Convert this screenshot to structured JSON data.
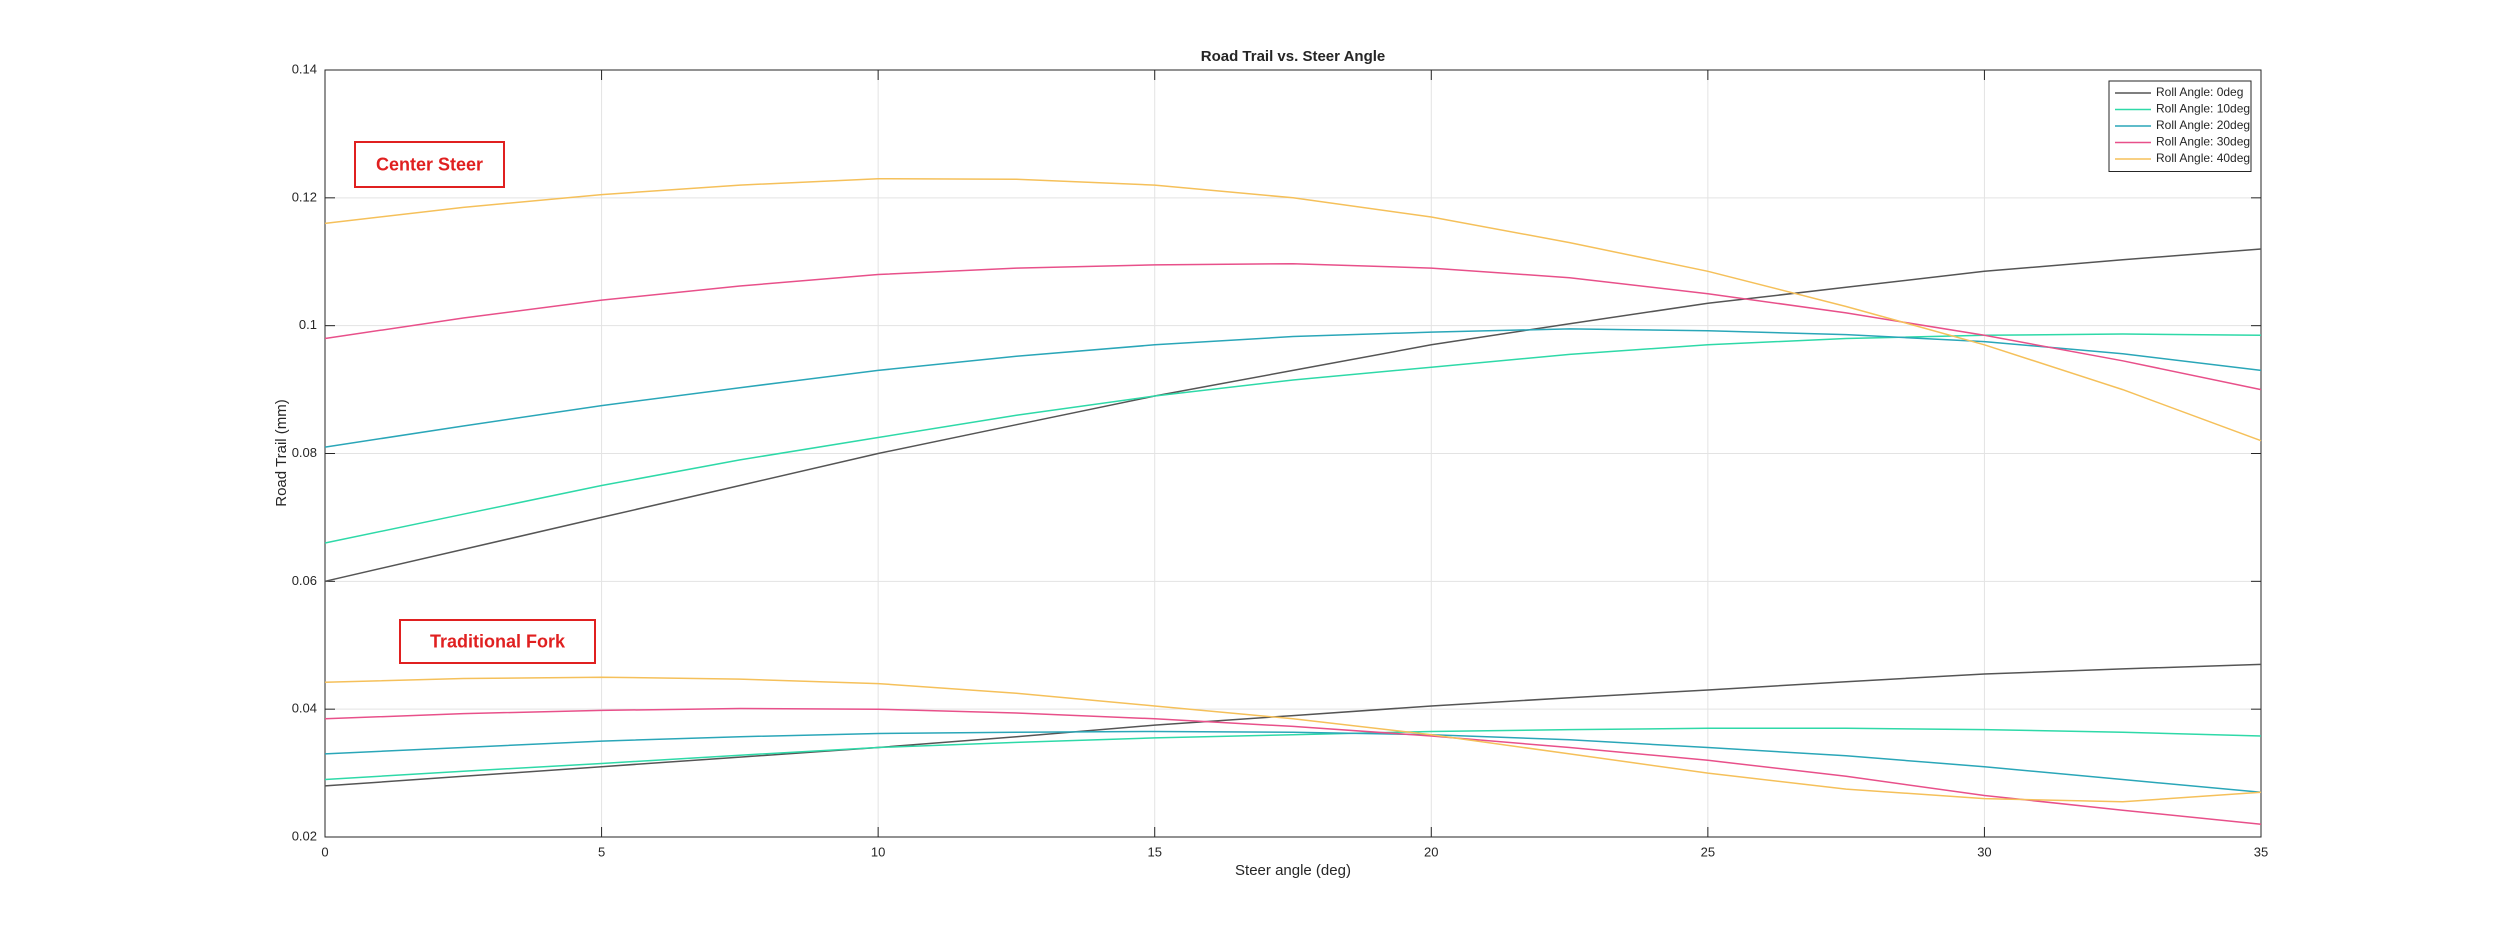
{
  "chart_data": {
    "type": "line",
    "title": "Road Trail vs. Steer Angle",
    "x_label": "Steer angle (deg)",
    "y_label": "Road Trail (mm)",
    "annotations": [
      "Center Steer",
      "Traditional Fork"
    ],
    "x": [
      0,
      2.5,
      5,
      7.5,
      10,
      12.5,
      15,
      17.5,
      20,
      22.5,
      25,
      27.5,
      30,
      32.5,
      35
    ],
    "xlim": [
      0,
      35
    ],
    "xticks": [
      0,
      5,
      10,
      15,
      20,
      25,
      30,
      35
    ],
    "ylim": [
      0.02,
      0.14
    ],
    "yticks": [
      0.02,
      0.04,
      0.06,
      0.08,
      0.1,
      0.12,
      0.14
    ],
    "grid": true,
    "legend": "top-right",
    "series": [
      {
        "name": "Roll Angle: 0deg",
        "color": "#555555",
        "values": [
          0.06,
          0.065,
          0.07,
          0.075,
          0.08,
          0.0845,
          0.089,
          0.093,
          0.097,
          0.1003,
          0.1035,
          0.106,
          0.1085,
          0.1103,
          0.112
        ]
      },
      {
        "name": "Roll Angle: 10deg",
        "color": "#2ed9a8",
        "values": [
          0.066,
          0.0705,
          0.075,
          0.079,
          0.0825,
          0.086,
          0.089,
          0.0915,
          0.0935,
          0.0955,
          0.097,
          0.098,
          0.0985,
          0.0987,
          0.0985
        ]
      },
      {
        "name": "Roll Angle: 20deg",
        "color": "#2aa6b8",
        "values": [
          0.081,
          0.0843,
          0.0875,
          0.0903,
          0.093,
          0.0952,
          0.097,
          0.0983,
          0.099,
          0.0995,
          0.0992,
          0.0986,
          0.0975,
          0.0956,
          0.093
        ]
      },
      {
        "name": "Roll Angle: 30deg",
        "color": "#e8508a",
        "values": [
          0.098,
          0.1012,
          0.104,
          0.1062,
          0.108,
          0.109,
          0.1095,
          0.1097,
          0.109,
          0.1075,
          0.105,
          0.102,
          0.0985,
          0.0945,
          0.09
        ]
      },
      {
        "name": "Roll Angle: 40deg",
        "color": "#f5c05a",
        "values": [
          0.116,
          0.1185,
          0.1205,
          0.122,
          0.123,
          0.1229,
          0.122,
          0.12,
          0.117,
          0.113,
          0.1085,
          0.103,
          0.097,
          0.09,
          0.082
        ]
      },
      {
        "color": "#555555",
        "values": [
          0.028,
          0.0295,
          0.031,
          0.0325,
          0.034,
          0.0357,
          0.0375,
          0.039,
          0.0405,
          0.0418,
          0.043,
          0.0443,
          0.0455,
          0.0463,
          0.047
        ]
      },
      {
        "color": "#2ed9a8",
        "values": [
          0.029,
          0.0303,
          0.0315,
          0.0328,
          0.034,
          0.0348,
          0.0355,
          0.036,
          0.0365,
          0.0368,
          0.037,
          0.037,
          0.0368,
          0.0364,
          0.0358
        ]
      },
      {
        "color": "#2aa6b8",
        "values": [
          0.033,
          0.034,
          0.035,
          0.0357,
          0.0362,
          0.0364,
          0.0365,
          0.0364,
          0.036,
          0.0352,
          0.034,
          0.0327,
          0.031,
          0.029,
          0.027
        ]
      },
      {
        "color": "#e8508a",
        "values": [
          0.0385,
          0.0393,
          0.0398,
          0.0401,
          0.04,
          0.0394,
          0.0385,
          0.0373,
          0.0358,
          0.034,
          0.032,
          0.0295,
          0.0265,
          0.0242,
          0.022
        ]
      },
      {
        "color": "#f5c05a",
        "values": [
          0.0442,
          0.0448,
          0.045,
          0.0447,
          0.044,
          0.0425,
          0.0405,
          0.0385,
          0.036,
          0.033,
          0.03,
          0.0275,
          0.026,
          0.0255,
          0.027
        ]
      }
    ]
  }
}
